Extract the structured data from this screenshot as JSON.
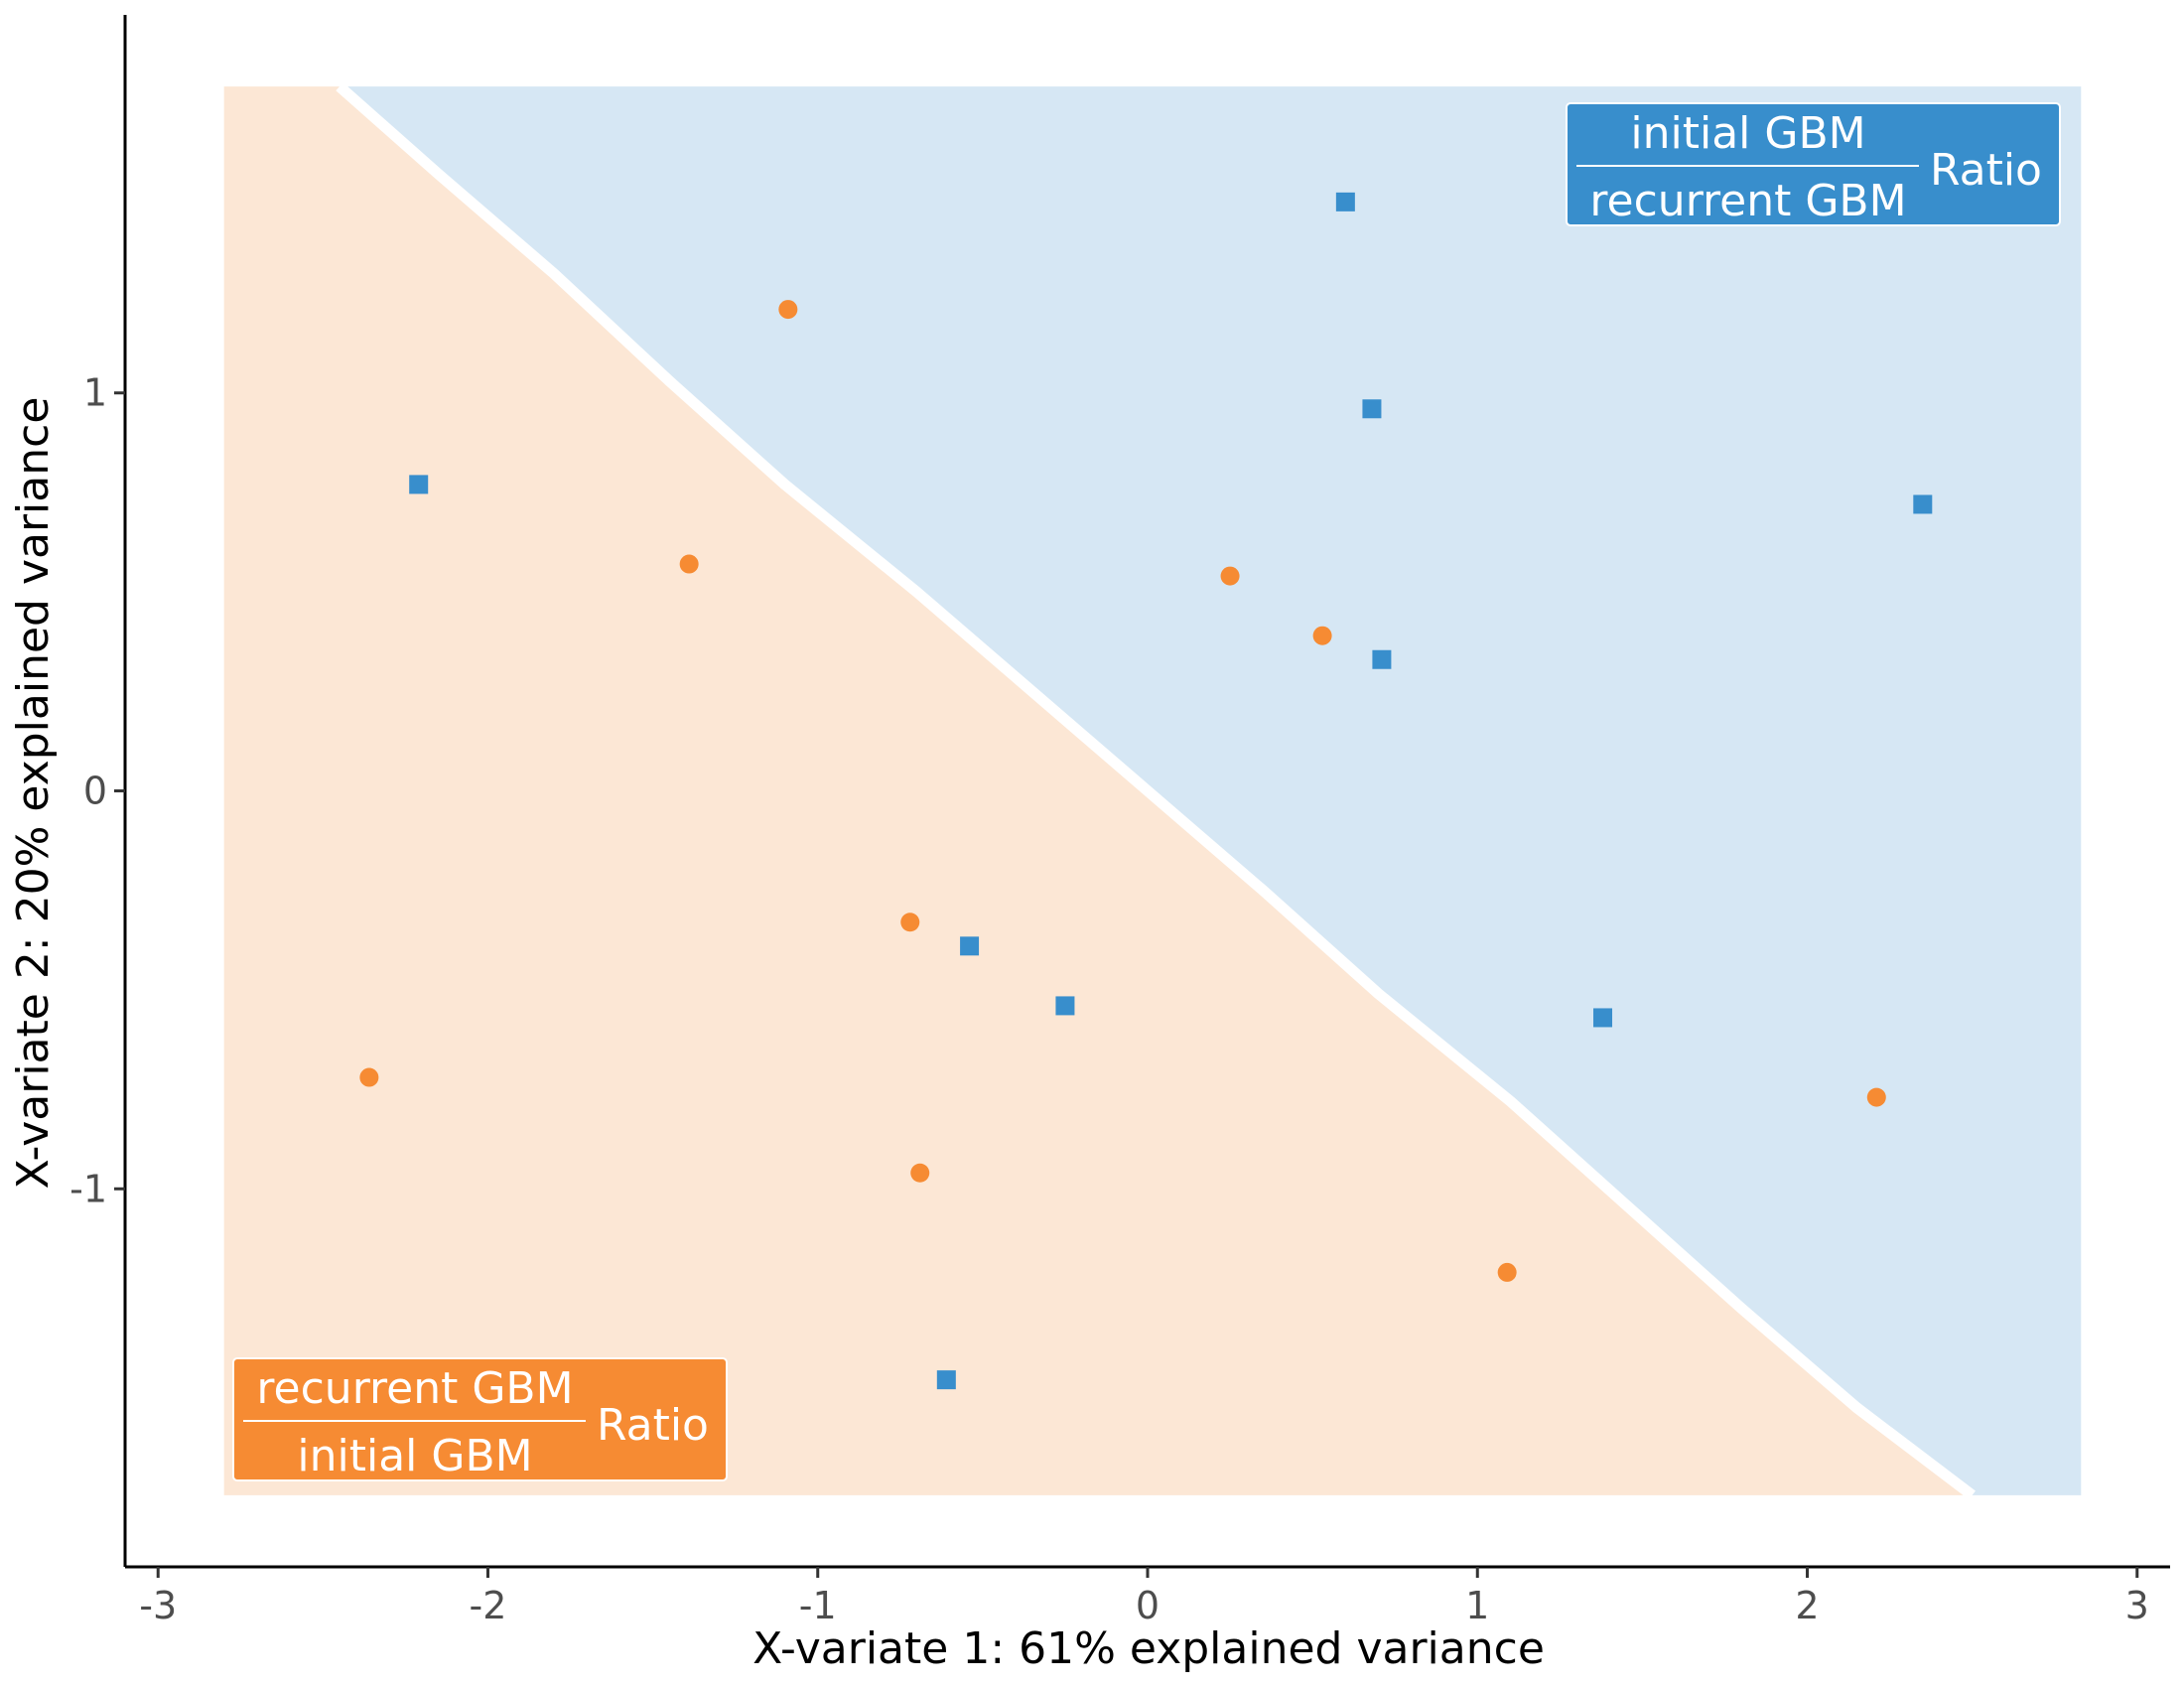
{
  "chart_data": {
    "type": "scatter",
    "title": "",
    "xlabel": "X-variate 1: 61% explained variance",
    "ylabel": "X-variate 2: 20% explained variance",
    "xlim": [
      -3.1,
      3.1
    ],
    "ylim": [
      -1.95,
      1.95
    ],
    "x_ticks": [
      -3,
      -2,
      -1,
      0,
      1,
      2,
      3
    ],
    "x_tick_labels": [
      "-3",
      "-2",
      "-1",
      "0",
      "1",
      "2",
      "3"
    ],
    "y_ticks": [
      -1,
      0,
      1
    ],
    "y_tick_labels": [
      "-1",
      "0",
      "1"
    ],
    "grid": false,
    "colors": {
      "orange": "#F68B33",
      "blue": "#388ECC",
      "orange_region": "#FCE7D5",
      "blue_region": "#D6E7F4",
      "boundary": "#FFFFFF",
      "axis": "#000000"
    },
    "background_region_extent": {
      "x": [
        -2.8,
        2.83
      ],
      "y": [
        -1.77,
        1.77
      ]
    },
    "decision_boundary": [
      [
        -2.45,
        1.77
      ],
      [
        -2.15,
        1.55
      ],
      [
        -1.8,
        1.3
      ],
      [
        -1.45,
        1.03
      ],
      [
        -1.1,
        0.77
      ],
      [
        -0.7,
        0.5
      ],
      [
        -0.35,
        0.25
      ],
      [
        0.0,
        0.0
      ],
      [
        0.35,
        -0.25
      ],
      [
        0.7,
        -0.51
      ],
      [
        1.1,
        -0.78
      ],
      [
        1.45,
        -1.04
      ],
      [
        1.8,
        -1.3
      ],
      [
        2.15,
        -1.55
      ],
      [
        2.5,
        -1.77
      ]
    ],
    "series": [
      {
        "marker": "circle",
        "color": "#F68B33",
        "points": [
          [
            -1.09,
            1.21
          ],
          [
            -1.39,
            0.57
          ],
          [
            0.25,
            0.54
          ],
          [
            0.53,
            0.39
          ],
          [
            -0.72,
            -0.33
          ],
          [
            -2.36,
            -0.72
          ],
          [
            -0.69,
            -0.96
          ],
          [
            1.09,
            -1.21
          ],
          [
            2.21,
            -0.77
          ]
        ]
      },
      {
        "marker": "square",
        "color": "#388ECC",
        "points": [
          [
            0.6,
            1.48
          ],
          [
            0.68,
            0.96
          ],
          [
            2.35,
            0.72
          ],
          [
            0.71,
            0.33
          ],
          [
            -2.21,
            0.77
          ],
          [
            -0.54,
            -0.39
          ],
          [
            -0.25,
            -0.54
          ],
          [
            1.38,
            -0.57
          ],
          [
            -0.61,
            -1.48
          ]
        ]
      }
    ],
    "region_labels": {
      "blue": {
        "numerator": "initial GBM",
        "denominator": "recurrent GBM",
        "suffix": "Ratio",
        "color": "#388ECC",
        "placement": "top-right"
      },
      "orange": {
        "numerator": "recurrent GBM",
        "denominator": "initial GBM",
        "suffix": "Ratio",
        "color": "#F68B33",
        "placement": "bottom-left"
      }
    }
  }
}
